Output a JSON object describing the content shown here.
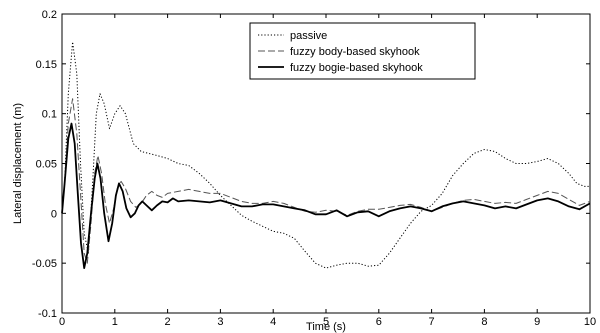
{
  "chart_data": {
    "type": "line",
    "xlabel": "Time (s)",
    "ylabel": "Lateral displacement (m)",
    "xlim": [
      0,
      10
    ],
    "ylim": [
      -0.1,
      0.2
    ],
    "xticks": [
      0,
      1,
      2,
      3,
      4,
      5,
      6,
      7,
      8,
      9,
      10
    ],
    "yticks": [
      -0.1,
      -0.05,
      0,
      0.05,
      0.1,
      0.15,
      0.2
    ],
    "grid": false,
    "legend_position": "top-right",
    "series": [
      {
        "name": "passive",
        "style": "dotted",
        "color": "#000000",
        "points": [
          [
            0,
            0
          ],
          [
            0.05,
            0.03
          ],
          [
            0.12,
            0.12
          ],
          [
            0.2,
            0.172
          ],
          [
            0.28,
            0.14
          ],
          [
            0.35,
            0.05
          ],
          [
            0.42,
            -0.02
          ],
          [
            0.5,
            -0.04
          ],
          [
            0.58,
            0.03
          ],
          [
            0.65,
            0.1
          ],
          [
            0.72,
            0.12
          ],
          [
            0.8,
            0.11
          ],
          [
            0.9,
            0.085
          ],
          [
            1.0,
            0.1
          ],
          [
            1.1,
            0.108
          ],
          [
            1.2,
            0.1
          ],
          [
            1.35,
            0.07
          ],
          [
            1.5,
            0.062
          ],
          [
            1.65,
            0.06
          ],
          [
            1.8,
            0.058
          ],
          [
            2.0,
            0.055
          ],
          [
            2.2,
            0.05
          ],
          [
            2.4,
            0.048
          ],
          [
            2.6,
            0.04
          ],
          [
            2.8,
            0.03
          ],
          [
            3.0,
            0.018
          ],
          [
            3.2,
            0.008
          ],
          [
            3.4,
            -0.002
          ],
          [
            3.6,
            -0.008
          ],
          [
            3.8,
            -0.013
          ],
          [
            4.0,
            -0.018
          ],
          [
            4.2,
            -0.02
          ],
          [
            4.4,
            -0.025
          ],
          [
            4.6,
            -0.038
          ],
          [
            4.8,
            -0.05
          ],
          [
            5.0,
            -0.055
          ],
          [
            5.2,
            -0.052
          ],
          [
            5.4,
            -0.05
          ],
          [
            5.6,
            -0.05
          ],
          [
            5.8,
            -0.053
          ],
          [
            6.0,
            -0.052
          ],
          [
            6.2,
            -0.04
          ],
          [
            6.4,
            -0.025
          ],
          [
            6.6,
            -0.01
          ],
          [
            6.8,
            0.002
          ],
          [
            7.0,
            0.008
          ],
          [
            7.2,
            0.02
          ],
          [
            7.4,
            0.038
          ],
          [
            7.6,
            0.05
          ],
          [
            7.8,
            0.06
          ],
          [
            8.0,
            0.064
          ],
          [
            8.2,
            0.062
          ],
          [
            8.4,
            0.055
          ],
          [
            8.6,
            0.05
          ],
          [
            8.8,
            0.05
          ],
          [
            9.0,
            0.052
          ],
          [
            9.2,
            0.055
          ],
          [
            9.4,
            0.05
          ],
          [
            9.6,
            0.04
          ],
          [
            9.75,
            0.03
          ],
          [
            9.9,
            0.027
          ],
          [
            10.0,
            0.027
          ]
        ]
      },
      {
        "name": "fuzzy body-based skyhook",
        "style": "dashed",
        "color": "#555555",
        "points": [
          [
            0,
            0
          ],
          [
            0.05,
            0.03
          ],
          [
            0.12,
            0.09
          ],
          [
            0.2,
            0.115
          ],
          [
            0.28,
            0.08
          ],
          [
            0.35,
            0.02
          ],
          [
            0.42,
            -0.04
          ],
          [
            0.48,
            -0.05
          ],
          [
            0.55,
            -0.01
          ],
          [
            0.62,
            0.04
          ],
          [
            0.68,
            0.058
          ],
          [
            0.75,
            0.04
          ],
          [
            0.82,
            0.01
          ],
          [
            0.9,
            -0.01
          ],
          [
            0.98,
            0.005
          ],
          [
            1.05,
            0.025
          ],
          [
            1.12,
            0.032
          ],
          [
            1.2,
            0.025
          ],
          [
            1.3,
            0.012
          ],
          [
            1.4,
            0.006
          ],
          [
            1.5,
            0.01
          ],
          [
            1.6,
            0.018
          ],
          [
            1.7,
            0.022
          ],
          [
            1.8,
            0.018
          ],
          [
            1.9,
            0.016
          ],
          [
            2.0,
            0.02
          ],
          [
            2.2,
            0.022
          ],
          [
            2.4,
            0.024
          ],
          [
            2.6,
            0.022
          ],
          [
            2.8,
            0.02
          ],
          [
            3.0,
            0.02
          ],
          [
            3.2,
            0.016
          ],
          [
            3.4,
            0.012
          ],
          [
            3.6,
            0.01
          ],
          [
            3.8,
            0.01
          ],
          [
            4.0,
            0.012
          ],
          [
            4.2,
            0.01
          ],
          [
            4.4,
            0.006
          ],
          [
            4.6,
            0.002
          ],
          [
            4.8,
            0.001
          ],
          [
            5.0,
            0.003
          ],
          [
            5.2,
            0.002
          ],
          [
            5.4,
            -0.002
          ],
          [
            5.6,
            0.002
          ],
          [
            5.8,
            0.004
          ],
          [
            6.0,
            0.004
          ],
          [
            6.2,
            0.006
          ],
          [
            6.4,
            0.008
          ],
          [
            6.6,
            0.009
          ],
          [
            6.8,
            0.006
          ],
          [
            7.0,
            0.002
          ],
          [
            7.2,
            0.006
          ],
          [
            7.4,
            0.01
          ],
          [
            7.6,
            0.013
          ],
          [
            7.8,
            0.014
          ],
          [
            8.0,
            0.012
          ],
          [
            8.2,
            0.01
          ],
          [
            8.4,
            0.011
          ],
          [
            8.6,
            0.01
          ],
          [
            8.8,
            0.014
          ],
          [
            9.0,
            0.018
          ],
          [
            9.2,
            0.022
          ],
          [
            9.4,
            0.02
          ],
          [
            9.6,
            0.014
          ],
          [
            9.8,
            0.008
          ],
          [
            10.0,
            0.012
          ]
        ]
      },
      {
        "name": "fuzzy bogie-based skyhook",
        "style": "solid",
        "color": "#000000",
        "points": [
          [
            0,
            0
          ],
          [
            0.05,
            0.03
          ],
          [
            0.12,
            0.075
          ],
          [
            0.18,
            0.09
          ],
          [
            0.24,
            0.07
          ],
          [
            0.3,
            0.02
          ],
          [
            0.36,
            -0.03
          ],
          [
            0.42,
            -0.055
          ],
          [
            0.48,
            -0.04
          ],
          [
            0.55,
            0.0
          ],
          [
            0.62,
            0.035
          ],
          [
            0.67,
            0.05
          ],
          [
            0.73,
            0.035
          ],
          [
            0.8,
            0.0
          ],
          [
            0.88,
            -0.028
          ],
          [
            0.95,
            -0.01
          ],
          [
            1.02,
            0.018
          ],
          [
            1.08,
            0.03
          ],
          [
            1.15,
            0.022
          ],
          [
            1.22,
            0.005
          ],
          [
            1.3,
            -0.004
          ],
          [
            1.38,
            0.0
          ],
          [
            1.45,
            0.008
          ],
          [
            1.52,
            0.012
          ],
          [
            1.6,
            0.008
          ],
          [
            1.7,
            0.003
          ],
          [
            1.8,
            0.008
          ],
          [
            1.9,
            0.012
          ],
          [
            2.0,
            0.011
          ],
          [
            2.1,
            0.015
          ],
          [
            2.2,
            0.012
          ],
          [
            2.4,
            0.013
          ],
          [
            2.6,
            0.012
          ],
          [
            2.8,
            0.011
          ],
          [
            3.0,
            0.013
          ],
          [
            3.2,
            0.01
          ],
          [
            3.4,
            0.007
          ],
          [
            3.6,
            0.007
          ],
          [
            3.8,
            0.009
          ],
          [
            4.0,
            0.009
          ],
          [
            4.2,
            0.007
          ],
          [
            4.4,
            0.005
          ],
          [
            4.6,
            0.003
          ],
          [
            4.8,
            -0.001
          ],
          [
            5.0,
            -0.001
          ],
          [
            5.2,
            0.003
          ],
          [
            5.4,
            -0.003
          ],
          [
            5.6,
            0.001
          ],
          [
            5.8,
            0.002
          ],
          [
            6.0,
            -0.003
          ],
          [
            6.2,
            0.002
          ],
          [
            6.4,
            0.005
          ],
          [
            6.6,
            0.007
          ],
          [
            6.8,
            0.005
          ],
          [
            7.0,
            0.002
          ],
          [
            7.2,
            0.007
          ],
          [
            7.4,
            0.01
          ],
          [
            7.6,
            0.012
          ],
          [
            7.8,
            0.01
          ],
          [
            8.0,
            0.008
          ],
          [
            8.2,
            0.005
          ],
          [
            8.4,
            0.007
          ],
          [
            8.6,
            0.005
          ],
          [
            8.8,
            0.009
          ],
          [
            9.0,
            0.013
          ],
          [
            9.2,
            0.015
          ],
          [
            9.4,
            0.012
          ],
          [
            9.6,
            0.007
          ],
          [
            9.8,
            0.004
          ],
          [
            10.0,
            0.01
          ]
        ]
      }
    ]
  }
}
